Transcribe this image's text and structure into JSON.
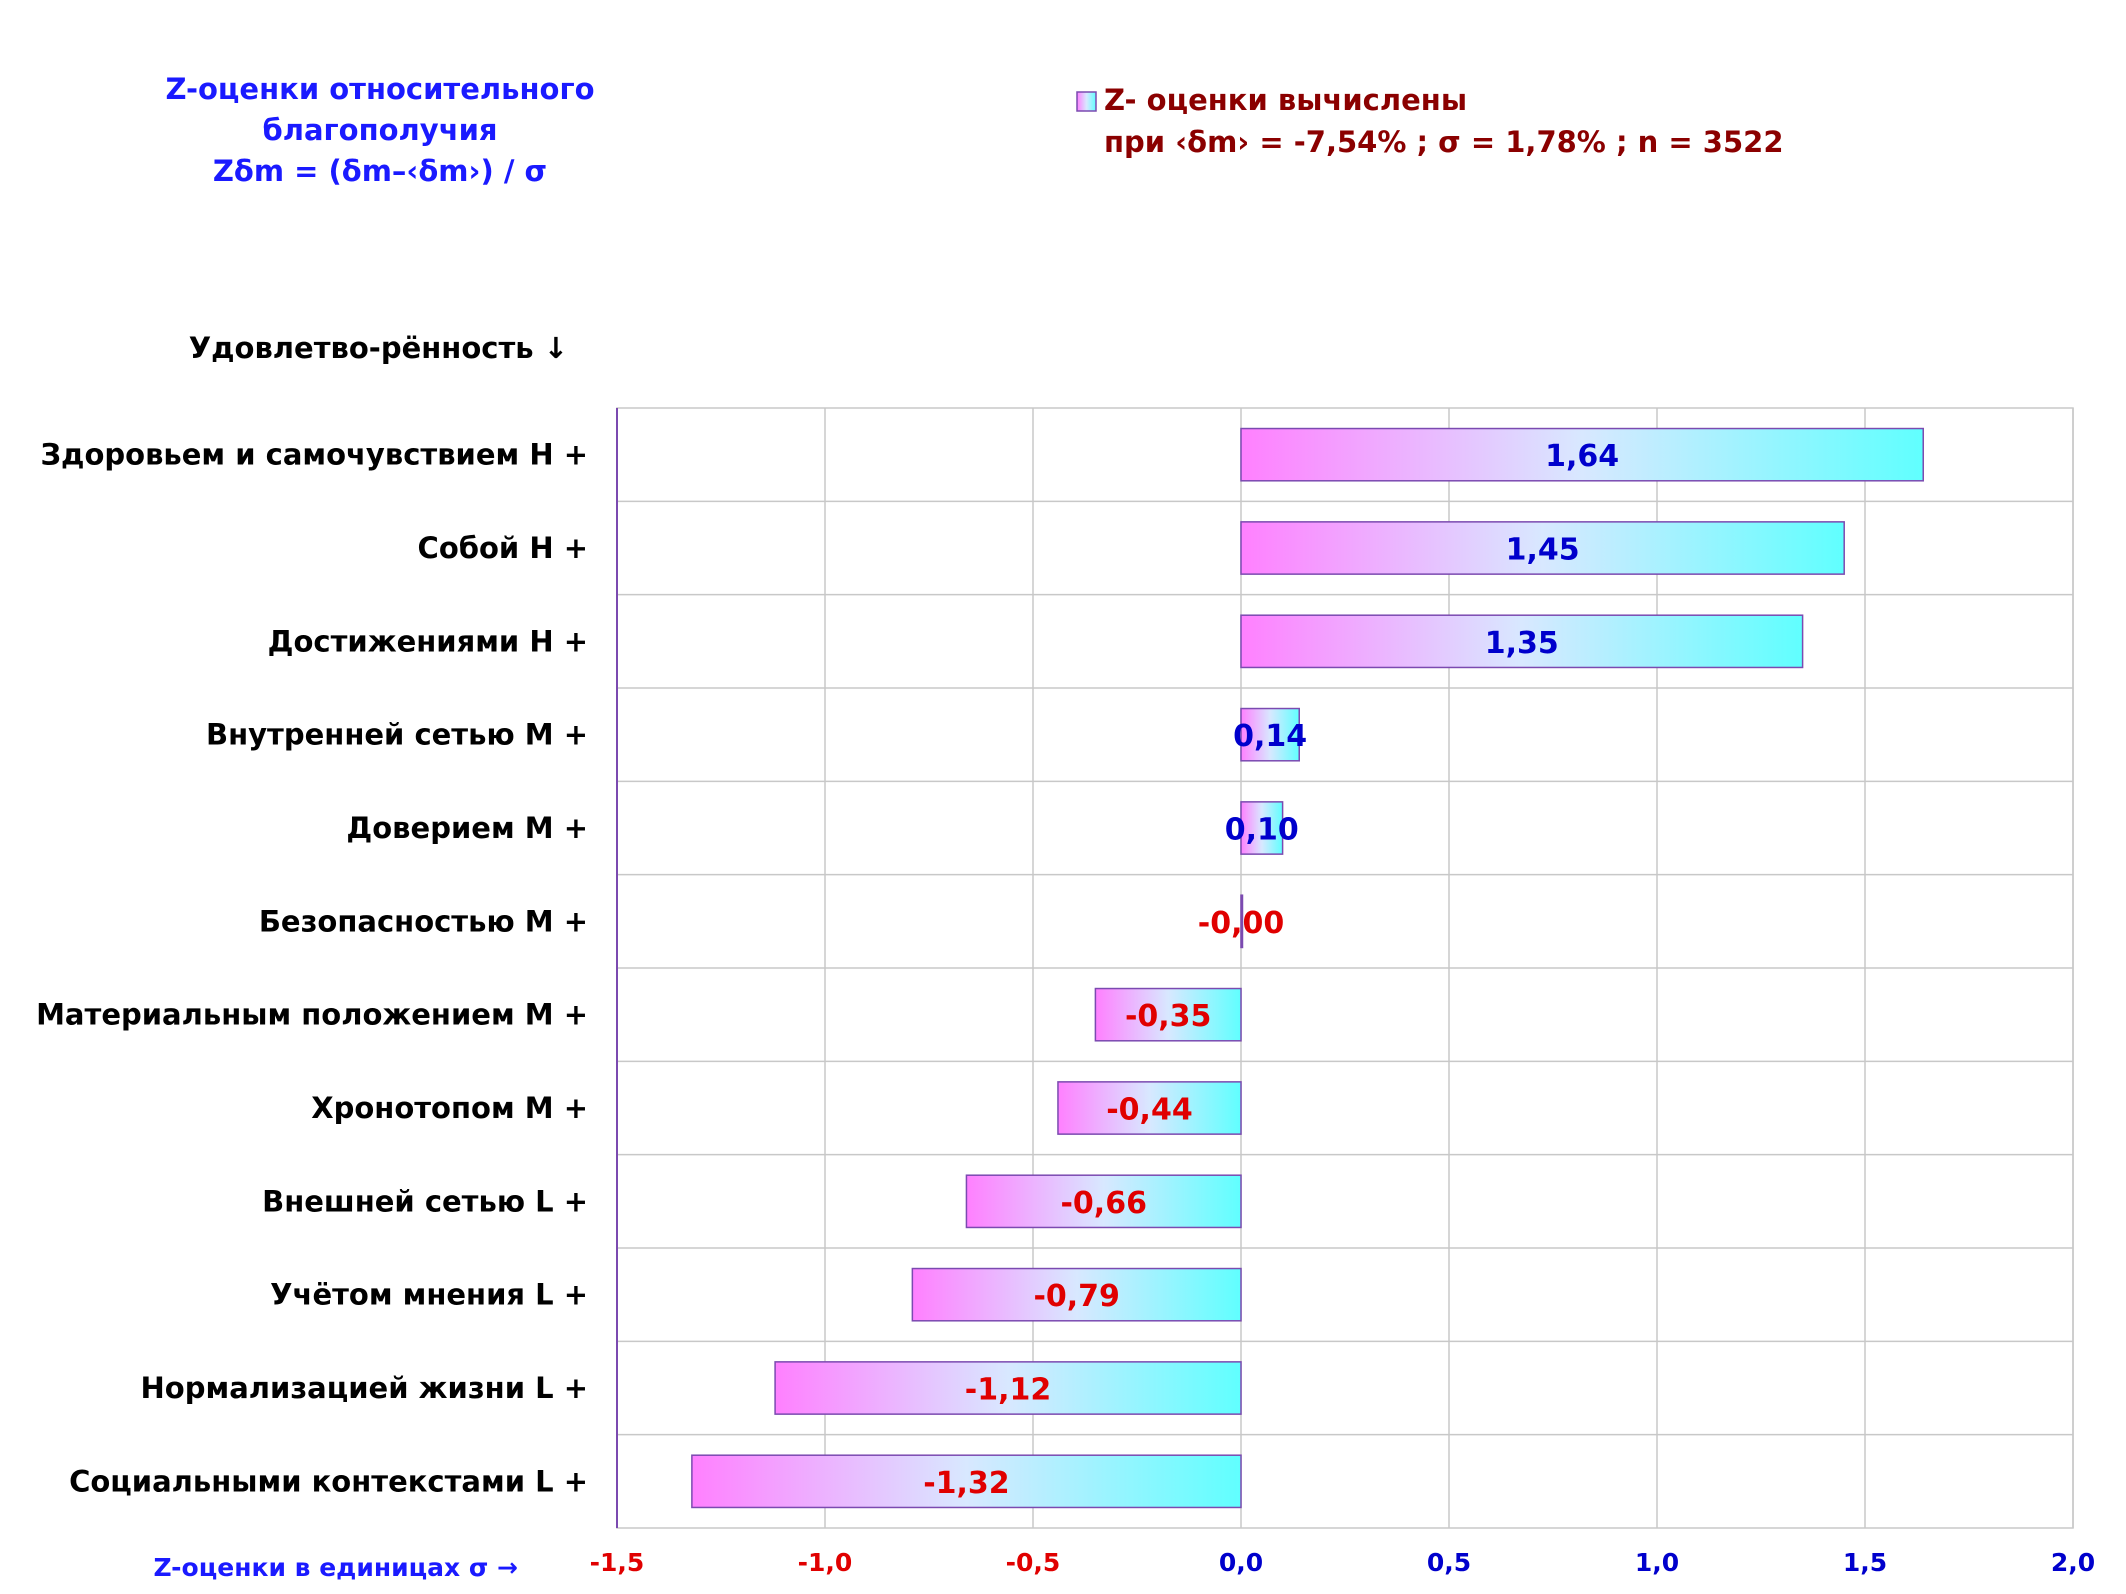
{
  "chart_data": {
    "type": "bar",
    "orientation": "horizontal",
    "title_lines": [
      "Z-оценки  относительного",
      "благополучия",
      "Zδm = (δm–‹δm›) / σ"
    ],
    "legend": {
      "line1": "Z- оценки вычислены",
      "line2": "при ‹δm› = -7,54% ; σ = 1,78% ; n = 3522",
      "placement": "top-right"
    },
    "ylabel": "Удовлетво-рённость ↓",
    "xlabel": "Z-оценки в единицах σ →",
    "xlim": [
      -1.5,
      2.0
    ],
    "xticks": [
      -1.5,
      -1.0,
      -0.5,
      0.0,
      0.5,
      1.0,
      1.5,
      2.0
    ],
    "xtick_labels": [
      "-1,5",
      "-1,0",
      "-0,5",
      "0,0",
      "0,5",
      "1,0",
      "1,5",
      "2,0"
    ],
    "grid": true,
    "categories": [
      "Здоровьем и самочувствием  H +",
      "Собой  H +",
      "Достижениями  H +",
      "Внутренней сетью  M +",
      "Доверием  M +",
      "Безопасностью  M +",
      "Материальным положением  M +",
      "Хронотопом  M +",
      "Внешней сетью  L +",
      "Учётом мнения  L +",
      "Нормализацией жизни  L +",
      "Социальными контекстами  L +"
    ],
    "values": [
      1.64,
      1.45,
      1.35,
      0.14,
      0.1,
      -0.0,
      -0.35,
      -0.44,
      -0.66,
      -0.79,
      -1.12,
      -1.32
    ],
    "value_labels": [
      "1,64",
      "1,45",
      "1,35",
      "0,14",
      "0,10",
      "-0,00",
      "-0,35",
      "-0,44",
      "-0,66",
      "-0,79",
      "-1,12",
      "-1,32"
    ],
    "colors": {
      "gradient_start": "#ff80ff",
      "gradient_mid": "#d8e8ff",
      "gradient_end": "#60ffff",
      "bar_border": "#7b4ab0",
      "positive_label": "#0000cc",
      "negative_label": "#e00000",
      "title": "#1a1aff",
      "legend_text": "#8b0000",
      "grid": "#c8c8c8",
      "axis": "#7b4ab0"
    }
  }
}
